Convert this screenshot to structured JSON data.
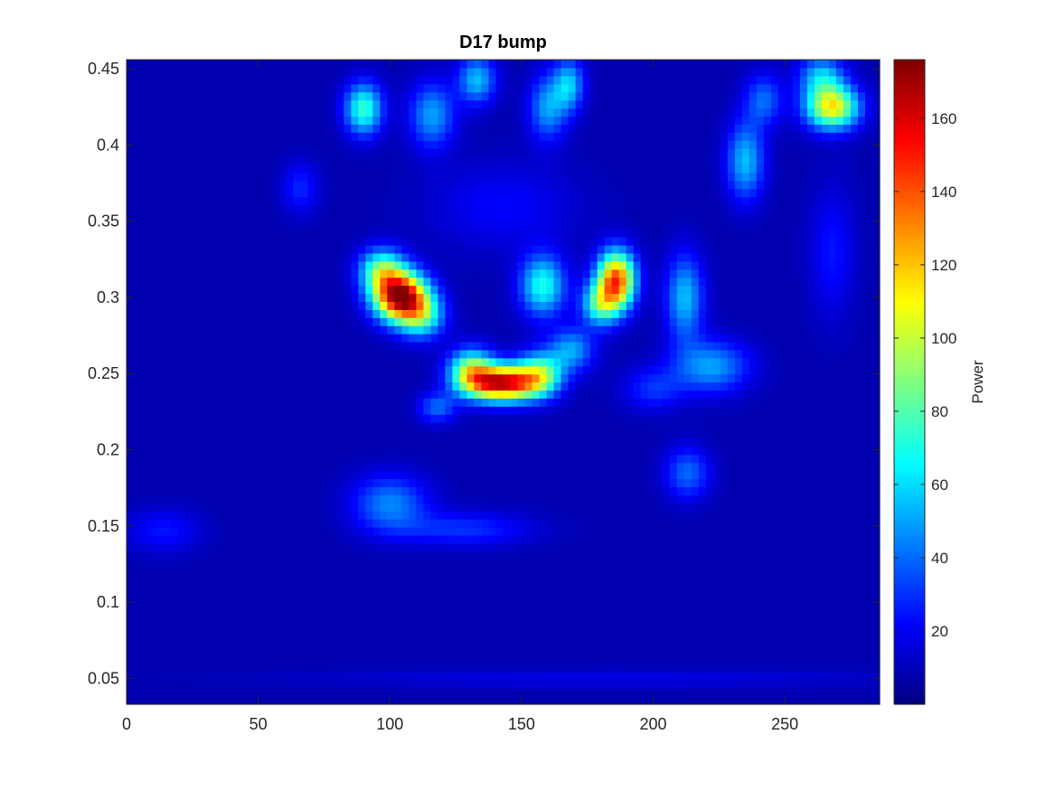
{
  "chart_data": {
    "type": "heatmap",
    "title": "D17 bump",
    "xlabel": "",
    "ylabel": "",
    "xlim": [
      0,
      286
    ],
    "ylim": [
      0.033,
      0.456
    ],
    "x_ticks": [
      "0",
      "50",
      "100",
      "150",
      "200",
      "250"
    ],
    "x_tick_values": [
      0,
      50,
      100,
      150,
      200,
      250
    ],
    "y_ticks": [
      "0.05",
      "0.1",
      "0.15",
      "0.2",
      "0.25",
      "0.3",
      "0.35",
      "0.4",
      "0.45"
    ],
    "y_tick_values": [
      0.05,
      0.1,
      0.15,
      0.2,
      0.25,
      0.3,
      0.35,
      0.4,
      0.45
    ],
    "colormap": "jet",
    "colorbar": {
      "label": "Power",
      "range": [
        0,
        176
      ],
      "ticks": [
        "20",
        "40",
        "60",
        "80",
        "100",
        "120",
        "140",
        "160"
      ],
      "tick_values": [
        20,
        40,
        60,
        80,
        100,
        120,
        140,
        160
      ]
    },
    "background_value": 8,
    "hotspots": [
      {
        "x": 104,
        "y": 0.301,
        "peak": 172,
        "sx": 7,
        "sy": 0.011
      },
      {
        "x": 97,
        "y": 0.318,
        "peak": 80,
        "sx": 6,
        "sy": 0.01
      },
      {
        "x": 112,
        "y": 0.288,
        "peak": 70,
        "sx": 6,
        "sy": 0.01
      },
      {
        "x": 143,
        "y": 0.244,
        "peak": 160,
        "sx": 9,
        "sy": 0.008
      },
      {
        "x": 131,
        "y": 0.252,
        "peak": 90,
        "sx": 6,
        "sy": 0.01
      },
      {
        "x": 157,
        "y": 0.25,
        "peak": 80,
        "sx": 6,
        "sy": 0.01
      },
      {
        "x": 186,
        "y": 0.312,
        "peak": 140,
        "sx": 5,
        "sy": 0.013
      },
      {
        "x": 180,
        "y": 0.296,
        "peak": 75,
        "sx": 5,
        "sy": 0.01
      },
      {
        "x": 158,
        "y": 0.308,
        "peak": 70,
        "sx": 6,
        "sy": 0.014
      },
      {
        "x": 169,
        "y": 0.266,
        "peak": 50,
        "sx": 6,
        "sy": 0.01
      },
      {
        "x": 268,
        "y": 0.425,
        "peak": 110,
        "sx": 7,
        "sy": 0.01
      },
      {
        "x": 264,
        "y": 0.445,
        "peak": 55,
        "sx": 6,
        "sy": 0.01
      },
      {
        "x": 90,
        "y": 0.424,
        "peak": 75,
        "sx": 5,
        "sy": 0.012
      },
      {
        "x": 116,
        "y": 0.42,
        "peak": 50,
        "sx": 6,
        "sy": 0.015
      },
      {
        "x": 133,
        "y": 0.443,
        "peak": 55,
        "sx": 5,
        "sy": 0.011
      },
      {
        "x": 160,
        "y": 0.425,
        "peak": 50,
        "sx": 5,
        "sy": 0.015
      },
      {
        "x": 168,
        "y": 0.44,
        "peak": 55,
        "sx": 4,
        "sy": 0.012
      },
      {
        "x": 235,
        "y": 0.39,
        "peak": 55,
        "sx": 5,
        "sy": 0.018
      },
      {
        "x": 242,
        "y": 0.43,
        "peak": 40,
        "sx": 5,
        "sy": 0.012
      },
      {
        "x": 212,
        "y": 0.3,
        "peak": 55,
        "sx": 5,
        "sy": 0.02
      },
      {
        "x": 222,
        "y": 0.255,
        "peak": 50,
        "sx": 10,
        "sy": 0.012
      },
      {
        "x": 213,
        "y": 0.185,
        "peak": 40,
        "sx": 6,
        "sy": 0.012
      },
      {
        "x": 100,
        "y": 0.165,
        "peak": 45,
        "sx": 10,
        "sy": 0.013
      },
      {
        "x": 128,
        "y": 0.148,
        "peak": 30,
        "sx": 18,
        "sy": 0.008
      },
      {
        "x": 118,
        "y": 0.228,
        "peak": 40,
        "sx": 5,
        "sy": 0.007
      },
      {
        "x": 14,
        "y": 0.147,
        "peak": 25,
        "sx": 10,
        "sy": 0.01
      },
      {
        "x": 66,
        "y": 0.372,
        "peak": 28,
        "sx": 5,
        "sy": 0.012
      },
      {
        "x": 268,
        "y": 0.33,
        "peak": 25,
        "sx": 6,
        "sy": 0.03
      },
      {
        "x": 200,
        "y": 0.24,
        "peak": 30,
        "sx": 8,
        "sy": 0.01
      },
      {
        "x": 143,
        "y": 0.36,
        "peak": 22,
        "sx": 20,
        "sy": 0.02
      },
      {
        "x": 180,
        "y": 0.05,
        "peak": 18,
        "sx": 80,
        "sy": 0.004
      }
    ]
  }
}
